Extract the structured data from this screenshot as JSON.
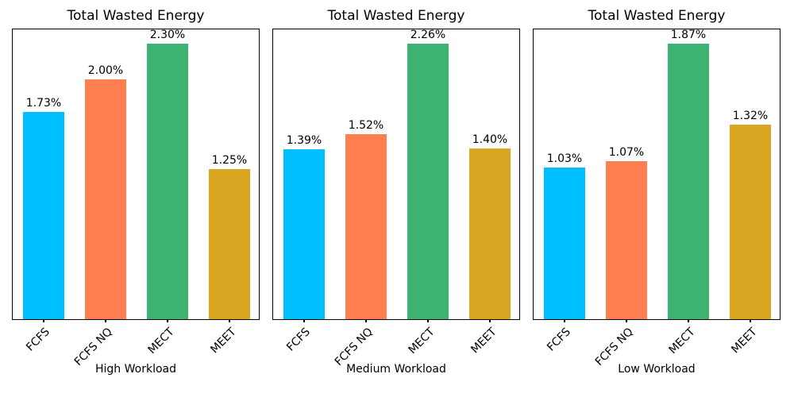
{
  "figure": {
    "background": "#ffffff",
    "bar_colors": [
      "#00BFFF",
      "#FF7F50",
      "#3CB371",
      "#DAA520"
    ],
    "text_color": "#000000",
    "frame_color": "#000000"
  },
  "chart_data": [
    {
      "type": "bar",
      "title": "Total Wasted Energy",
      "categories": [
        "FCFS",
        "FCFS NQ",
        "MECT",
        "MEET"
      ],
      "values": [
        1.73,
        2.0,
        2.3,
        1.25
      ],
      "bar_labels": [
        "1.73%",
        "2.00%",
        "2.30%",
        "1.25%"
      ],
      "xlabel": "High Workload",
      "ylabel": "",
      "ylim": [
        0,
        2.415
      ],
      "grid": false,
      "legend": "none"
    },
    {
      "type": "bar",
      "title": "Total Wasted Energy",
      "categories": [
        "FCFS",
        "FCFS NQ",
        "MECT",
        "MEET"
      ],
      "values": [
        1.39,
        1.52,
        2.26,
        1.4
      ],
      "bar_labels": [
        "1.39%",
        "1.52%",
        "2.26%",
        "1.40%"
      ],
      "xlabel": "Medium Workload",
      "ylabel": "",
      "ylim": [
        0,
        2.373
      ],
      "grid": false,
      "legend": "none"
    },
    {
      "type": "bar",
      "title": "Total Wasted Energy",
      "categories": [
        "FCFS",
        "FCFS NQ",
        "MECT",
        "MEET"
      ],
      "values": [
        1.03,
        1.07,
        1.87,
        1.32
      ],
      "bar_labels": [
        "1.03%",
        "1.07%",
        "1.87%",
        "1.32%"
      ],
      "xlabel": "Low Workload",
      "ylabel": "",
      "ylim": [
        0,
        1.9635
      ],
      "grid": false,
      "legend": "none"
    }
  ]
}
